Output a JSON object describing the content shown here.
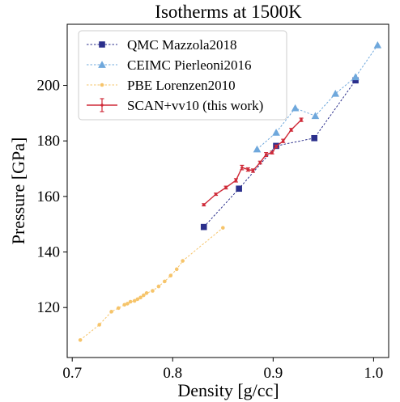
{
  "chart_data": {
    "type": "line",
    "title": "Isotherms at 1500K",
    "xlabel": "Density [g/cc]",
    "ylabel": "Pressure [GPa]",
    "xlim": [
      0.695,
      1.015
    ],
    "ylim": [
      102,
      222
    ],
    "xticks": [
      0.7,
      0.8,
      0.9,
      1.0
    ],
    "yticks": [
      120,
      140,
      160,
      180,
      200
    ],
    "xtick_labels": [
      "0.7",
      "0.8",
      "0.9",
      "1.0"
    ],
    "ytick_labels": [
      "120",
      "140",
      "160",
      "180",
      "200"
    ],
    "grid": false,
    "legend_position": "top-left",
    "series": [
      {
        "name": "QMC Mazzola2018",
        "color": "#2b2f8c",
        "marker": "square",
        "line": "dashed",
        "x": [
          0.831,
          0.866,
          0.903,
          0.941,
          0.982
        ],
        "y": [
          149.0,
          162.8,
          178.2,
          181.0,
          201.8
        ]
      },
      {
        "name": "CEIMC Pierleoni2016",
        "color": "#6fa8dc",
        "marker": "triangle",
        "line": "dashed",
        "x": [
          0.884,
          0.903,
          0.922,
          0.942,
          0.962,
          0.982,
          1.004
        ],
        "y": [
          177.0,
          183.0,
          191.8,
          189.0,
          197.0,
          203.0,
          214.5
        ]
      },
      {
        "name": "PBE Lorenzen2010",
        "color": "#f6c46a",
        "marker": "circle",
        "line": "dashed",
        "x": [
          0.708,
          0.727,
          0.739,
          0.746,
          0.752,
          0.755,
          0.758,
          0.762,
          0.765,
          0.768,
          0.771,
          0.774,
          0.78,
          0.786,
          0.792,
          0.798,
          0.804,
          0.81,
          0.85
        ],
        "y": [
          108.3,
          113.8,
          118.5,
          119.8,
          121.0,
          121.4,
          122.1,
          122.4,
          123.0,
          123.6,
          124.4,
          125.2,
          126.0,
          127.6,
          129.4,
          131.5,
          133.8,
          136.8,
          148.7
        ]
      },
      {
        "name": "SCAN+vv10 (this work)",
        "color": "#cf2a38",
        "marker": "errorbar",
        "line": "solid",
        "x": [
          0.831,
          0.843,
          0.853,
          0.863,
          0.869,
          0.875,
          0.88,
          0.887,
          0.893,
          0.899,
          0.903,
          0.91,
          0.918,
          0.928
        ],
        "y": [
          157.0,
          160.8,
          163.2,
          165.8,
          170.4,
          169.7,
          169.3,
          172.2,
          175.1,
          175.8,
          178.0,
          180.0,
          184.0,
          187.6
        ],
        "yerr": [
          0.4,
          0.4,
          0.5,
          0.6,
          0.8,
          0.6,
          0.6,
          0.5,
          0.7,
          0.5,
          0.5,
          0.6,
          0.5,
          0.6
        ]
      }
    ]
  }
}
